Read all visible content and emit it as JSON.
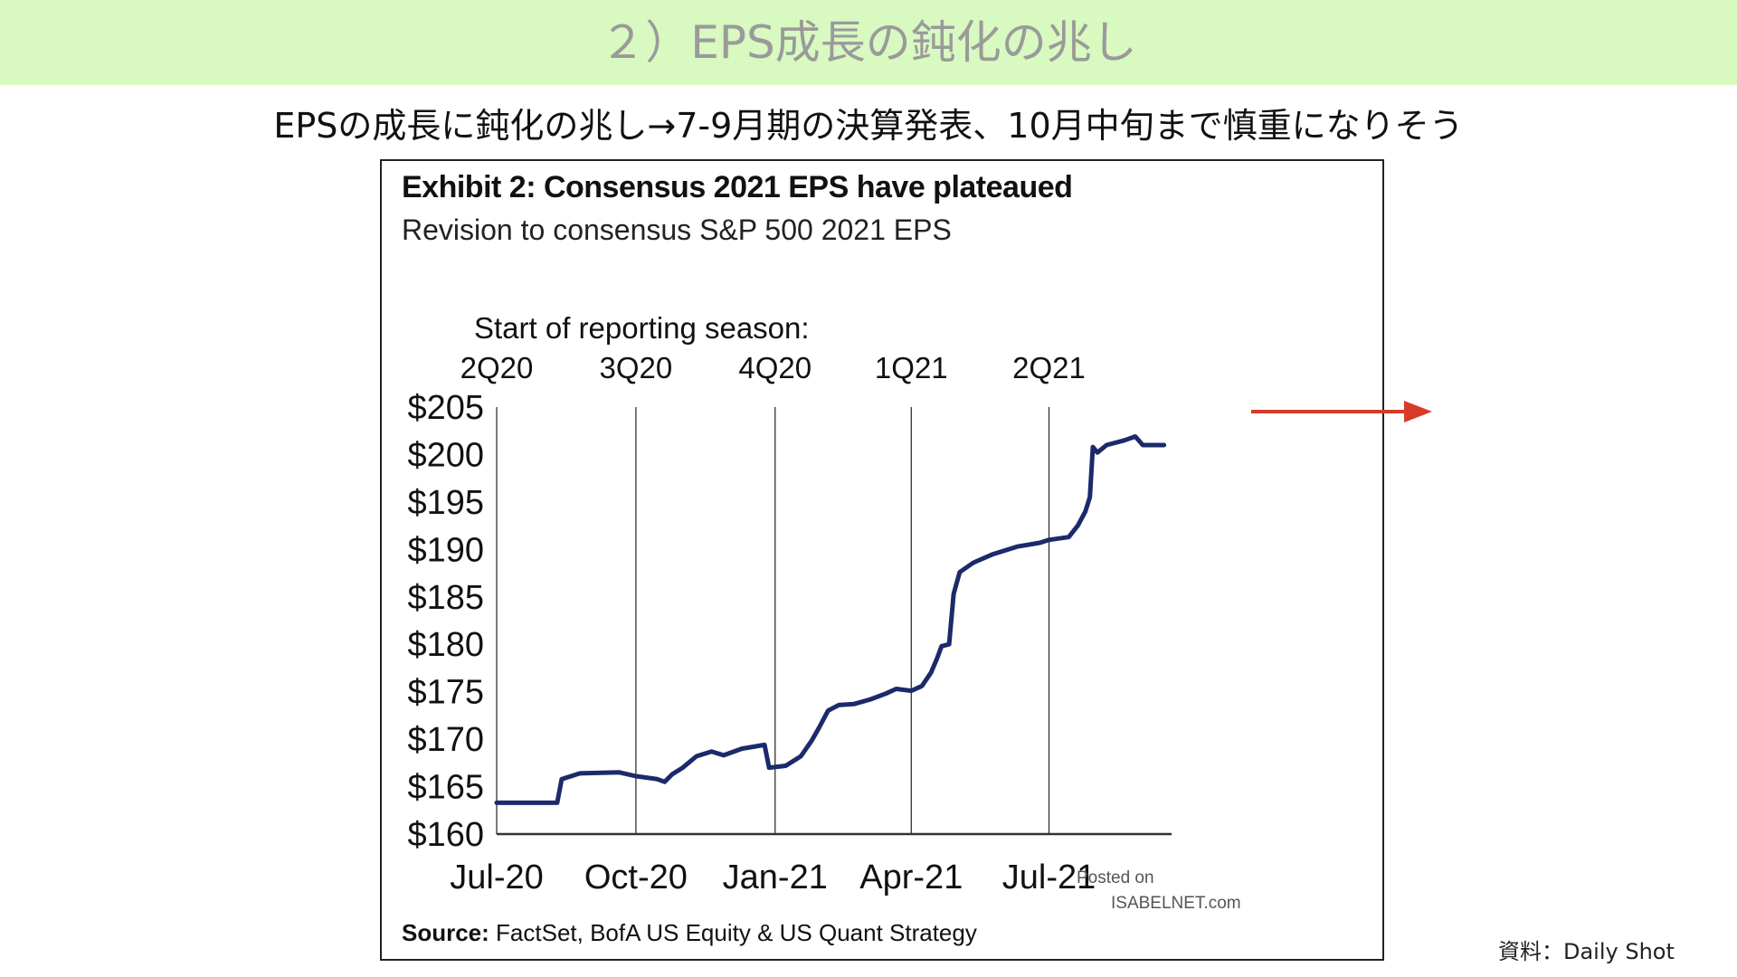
{
  "slide": {
    "banner_title": "２）EPS成長の鈍化の兆し",
    "subtitle": "EPSの成長に鈍化の兆し→7-9月期の決算発表、10月中旬まで慎重になりそう",
    "credit": "資料：Daily Shot",
    "banner_color": "#d8f9c0",
    "arrow_color": "#d83a2a"
  },
  "chart_data": {
    "type": "line",
    "title": "Exhibit 2: Consensus 2021 EPS have plateaued",
    "subtitle": "Revision to consensus S&P 500 2021 EPS",
    "season_label": "Start of reporting  season:",
    "season_markers": [
      {
        "label": "2Q20",
        "date": "2020-07-01"
      },
      {
        "label": "3Q20",
        "date": "2020-10-01"
      },
      {
        "label": "4Q20",
        "date": "2021-01-01"
      },
      {
        "label": "1Q21",
        "date": "2021-04-01"
      },
      {
        "label": "2Q21",
        "date": "2021-07-01"
      }
    ],
    "x_ticks": [
      {
        "label": "Jul-20",
        "date": "2020-07-01"
      },
      {
        "label": "Oct-20",
        "date": "2020-10-01"
      },
      {
        "label": "Jan-21",
        "date": "2021-01-01"
      },
      {
        "label": "Apr-21",
        "date": "2021-04-01"
      },
      {
        "label": "Jul-21",
        "date": "2021-07-01"
      }
    ],
    "y_ticks": [
      "$205",
      "$200",
      "$195",
      "$190",
      "$185",
      "$180",
      "$175",
      "$170",
      "$165",
      "$160"
    ],
    "ylim": [
      160,
      205
    ],
    "xlim": [
      "2020-07-01",
      "2021-09-20"
    ],
    "grid": "vertical lines at reporting season starts",
    "line_color": "#1c2a6b",
    "series": [
      {
        "values": [
          {
            "x": "2020-07-01",
            "y": 163.3
          },
          {
            "x": "2020-08-10",
            "y": 163.3
          },
          {
            "x": "2020-08-13",
            "y": 165.8
          },
          {
            "x": "2020-08-25",
            "y": 166.4
          },
          {
            "x": "2020-09-20",
            "y": 166.5
          },
          {
            "x": "2020-10-01",
            "y": 166.1
          },
          {
            "x": "2020-10-15",
            "y": 165.8
          },
          {
            "x": "2020-10-20",
            "y": 165.5
          },
          {
            "x": "2020-10-25",
            "y": 166.3
          },
          {
            "x": "2020-11-01",
            "y": 167.0
          },
          {
            "x": "2020-11-10",
            "y": 168.2
          },
          {
            "x": "2020-11-20",
            "y": 168.7
          },
          {
            "x": "2020-11-28",
            "y": 168.3
          },
          {
            "x": "2020-12-10",
            "y": 169.0
          },
          {
            "x": "2020-12-25",
            "y": 169.4
          },
          {
            "x": "2020-12-28",
            "y": 167.0
          },
          {
            "x": "2021-01-08",
            "y": 167.2
          },
          {
            "x": "2021-01-18",
            "y": 168.2
          },
          {
            "x": "2021-01-25",
            "y": 169.8
          },
          {
            "x": "2021-01-30",
            "y": 171.2
          },
          {
            "x": "2021-02-05",
            "y": 173.0
          },
          {
            "x": "2021-02-12",
            "y": 173.6
          },
          {
            "x": "2021-02-22",
            "y": 173.7
          },
          {
            "x": "2021-03-05",
            "y": 174.2
          },
          {
            "x": "2021-03-15",
            "y": 174.8
          },
          {
            "x": "2021-03-22",
            "y": 175.3
          },
          {
            "x": "2021-04-01",
            "y": 175.1
          },
          {
            "x": "2021-04-08",
            "y": 175.6
          },
          {
            "x": "2021-04-14",
            "y": 177.0
          },
          {
            "x": "2021-04-18",
            "y": 178.5
          },
          {
            "x": "2021-04-21",
            "y": 179.8
          },
          {
            "x": "2021-04-26",
            "y": 180.0
          },
          {
            "x": "2021-04-29",
            "y": 185.3
          },
          {
            "x": "2021-05-03",
            "y": 187.6
          },
          {
            "x": "2021-05-12",
            "y": 188.6
          },
          {
            "x": "2021-05-25",
            "y": 189.5
          },
          {
            "x": "2021-06-10",
            "y": 190.3
          },
          {
            "x": "2021-06-25",
            "y": 190.7
          },
          {
            "x": "2021-07-01",
            "y": 191.0
          },
          {
            "x": "2021-07-14",
            "y": 191.3
          },
          {
            "x": "2021-07-20",
            "y": 192.5
          },
          {
            "x": "2021-07-25",
            "y": 194.0
          },
          {
            "x": "2021-07-28",
            "y": 195.5
          },
          {
            "x": "2021-07-30",
            "y": 200.8
          },
          {
            "x": "2021-08-02",
            "y": 200.2
          },
          {
            "x": "2021-08-08",
            "y": 201.0
          },
          {
            "x": "2021-08-20",
            "y": 201.5
          },
          {
            "x": "2021-08-27",
            "y": 201.9
          },
          {
            "x": "2021-09-01",
            "y": 201.0
          },
          {
            "x": "2021-09-15",
            "y": 201.0
          }
        ]
      }
    ],
    "source_label": "Source:",
    "source_text": "FactSet, BofA US Equity & US Quant Strategy",
    "watermark_posted": "Posted on",
    "watermark_site": "ISABELNET.com"
  }
}
